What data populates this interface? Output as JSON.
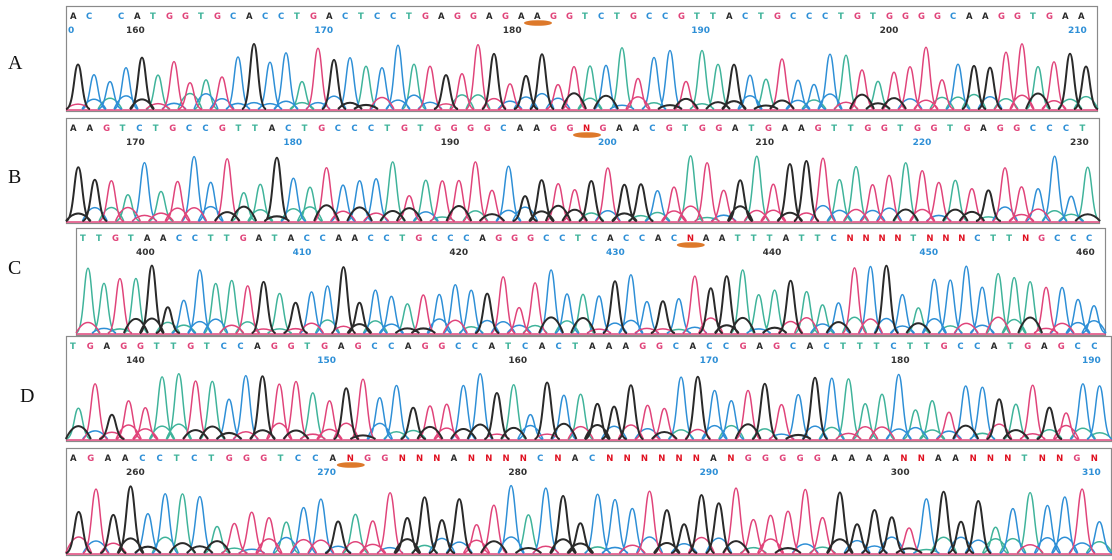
{
  "colors": {
    "A": "#2a2a2a",
    "C": "#2e8fd6",
    "G": "#e0447a",
    "T": "#3fb39a",
    "N": "#e01020",
    "frame": "#8a8a8a",
    "highlight": "#d96a14",
    "annotation": "#3b5cc4"
  },
  "panels": [
    {
      "id": "A",
      "label": "A",
      "sequence": "AC CATGGTGCACCTGACTCCTGAGGAGAAGGTCTGCCGTTACTGCCCTGTGGGGCAAGGTGAA",
      "positions": [
        "160",
        "170",
        "180",
        "190",
        "200",
        "210"
      ],
      "first_pos_label": "0",
      "highlight_index": 29
    },
    {
      "id": "B",
      "label": "B",
      "sequence": "AAGTCTGCCGTTACTGCCCTGTGGGGCAAGGNGAACGTGGATGAAGTTGGTGGTGAGGCCCT",
      "positions": [
        "170",
        "180",
        "190",
        "200",
        "210",
        "220",
        "230"
      ],
      "highlight_index": 31
    },
    {
      "id": "C",
      "label": "C",
      "sequence": "TTGTAACCTTGATACCAACCTGCCCAGGGCCTCACCACNAATTTATTCNNNNTNNNCTTNGCCC",
      "positions": [
        "400",
        "410",
        "420",
        "430",
        "440",
        "450",
        "460"
      ],
      "highlight_index": 38
    },
    {
      "id": "D",
      "label": "D",
      "sequence": "TGAGGTTGTCCAGGTGAGCCAGGCCATCACTAAAGGCACCGAGCACTTTCTTGCCATGAGCC",
      "positions": [
        "140",
        "150",
        "160",
        "170",
        "180",
        "190"
      ],
      "highlight_index": -1
    },
    {
      "id": "E",
      "label": "",
      "sequence": "AGAACCTCTGGGTCCANGGNNNANNNNCNACNNNNNNANGGGGGAAAANNAANNNTNNGN",
      "positions": [
        "260",
        "270",
        "280",
        "290",
        "300",
        "310"
      ],
      "highlight_index": 16
    }
  ]
}
